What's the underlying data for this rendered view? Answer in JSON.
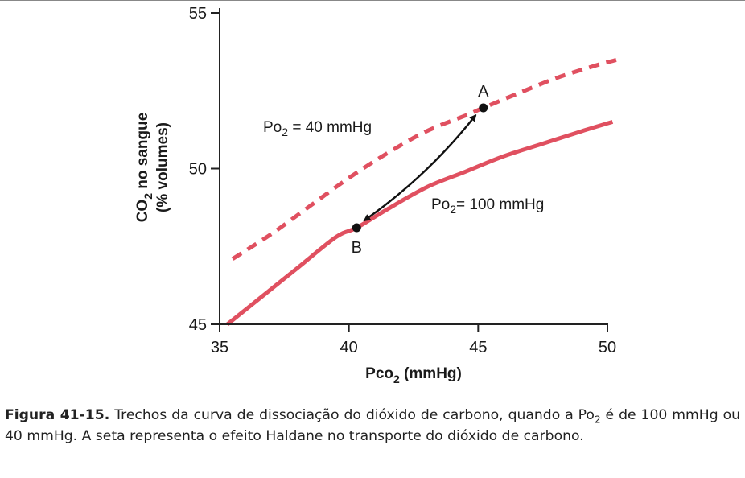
{
  "chart_data": {
    "type": "line",
    "xlabel": {
      "main": "Pco",
      "sub": "2",
      "tail": " (mmHg)"
    },
    "ylabel": {
      "line1_main": "CO",
      "line1_sub": "2",
      "line1_tail": " no sangue",
      "line2": "(% volumes)"
    },
    "xlim": [
      35,
      50
    ],
    "ylim": [
      45,
      55
    ],
    "x_ticks": [
      35,
      40,
      45,
      50
    ],
    "y_ticks": [
      45,
      50,
      55
    ],
    "grid": false,
    "series": [
      {
        "name": "Po2 = 40 mmHg",
        "label": {
          "main": "Po",
          "sub": "2",
          "tail": " = 40 mmHg"
        },
        "style": "dashed",
        "color": "#e05060",
        "x": [
          35.5,
          37,
          38.5,
          40,
          41.5,
          43,
          44.5,
          45.2,
          46.5,
          48,
          49.5,
          50.4
        ],
        "y": [
          47.1,
          47.9,
          48.8,
          49.7,
          50.5,
          51.2,
          51.7,
          51.95,
          52.4,
          52.9,
          53.3,
          53.5
        ]
      },
      {
        "name": "Po2 = 100 mmHg",
        "label": {
          "main": "Po",
          "sub": "2",
          "tail": "= 100 mmHg"
        },
        "style": "solid",
        "color": "#e05060",
        "x": [
          35.3,
          36.5,
          38,
          39.5,
          40.3,
          41.5,
          43,
          44.5,
          46,
          47.5,
          49,
          50.2
        ],
        "y": [
          45.0,
          45.8,
          46.8,
          47.8,
          48.1,
          48.7,
          49.4,
          49.9,
          50.4,
          50.8,
          51.2,
          51.5
        ]
      }
    ],
    "points": [
      {
        "name": "A",
        "x": 45.2,
        "y": 51.95
      },
      {
        "name": "B",
        "x": 40.3,
        "y": 48.1
      }
    ],
    "arrow": {
      "from": "A",
      "to": "B",
      "bidirectional": true,
      "color": "#111111"
    }
  },
  "caption": {
    "figure_label": "Figura 41-15.",
    "text_1": " Trechos da curva de dissociação do dióxido de carbono, quando a Po",
    "sub": "2",
    "text_2": " é de 100 mmHg ou 40 mmHg. A seta representa o efeito Haldane no transporte do dióxido de carbono."
  }
}
